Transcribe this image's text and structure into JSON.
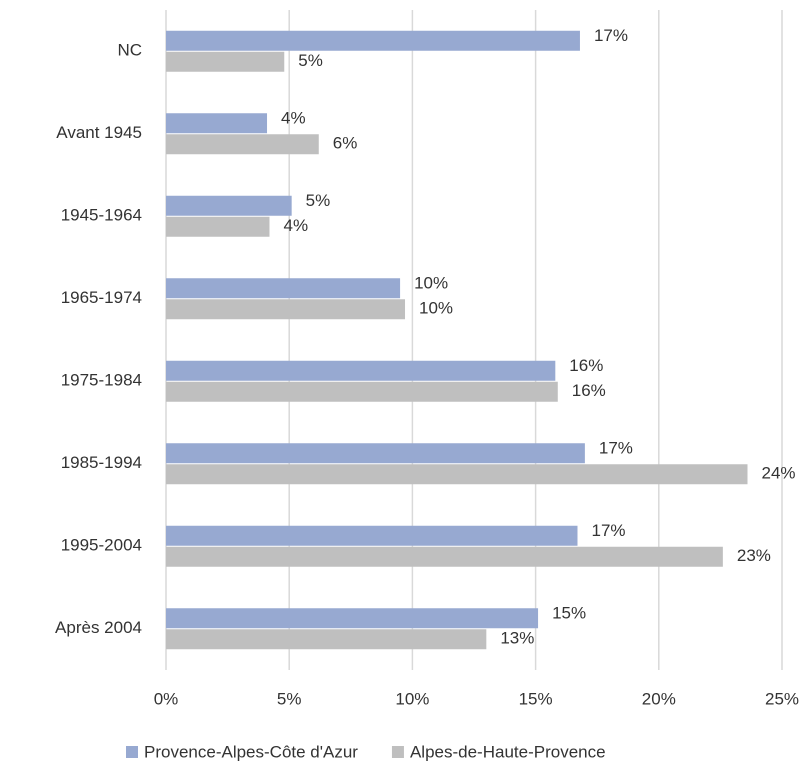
{
  "chart_data": {
    "type": "bar",
    "orientation": "horizontal",
    "categories": [
      "NC",
      "Avant 1945",
      "1945-1964",
      "1965-1974",
      "1975-1984",
      "1985-1994",
      "1995-2004",
      "Après 2004"
    ],
    "series": [
      {
        "name": "Provence-Alpes-Côte d'Azur",
        "color": "#97a9d1",
        "values": [
          16.8,
          4.1,
          5.1,
          9.5,
          15.8,
          17.0,
          16.7,
          15.1
        ],
        "value_labels": [
          "17%",
          "4%",
          "5%",
          "10%",
          "16%",
          "17%",
          "17%",
          "15%"
        ]
      },
      {
        "name": "Alpes-de-Haute-Provence",
        "color": "#bfbfbf",
        "values": [
          4.8,
          6.2,
          4.2,
          9.7,
          15.9,
          23.6,
          22.6,
          13.0
        ],
        "value_labels": [
          "5%",
          "6%",
          "4%",
          "10%",
          "16%",
          "24%",
          "23%",
          "13%"
        ]
      }
    ],
    "xlim": [
      0,
      25
    ],
    "xticks": [
      {
        "value": 0,
        "label": "0%"
      },
      {
        "value": 5,
        "label": "5%"
      },
      {
        "value": 10,
        "label": "10%"
      },
      {
        "value": 15,
        "label": "15%"
      },
      {
        "value": 20,
        "label": "20%"
      },
      {
        "value": 25,
        "label": "25%"
      }
    ],
    "grid": true,
    "legend": "bottom"
  }
}
